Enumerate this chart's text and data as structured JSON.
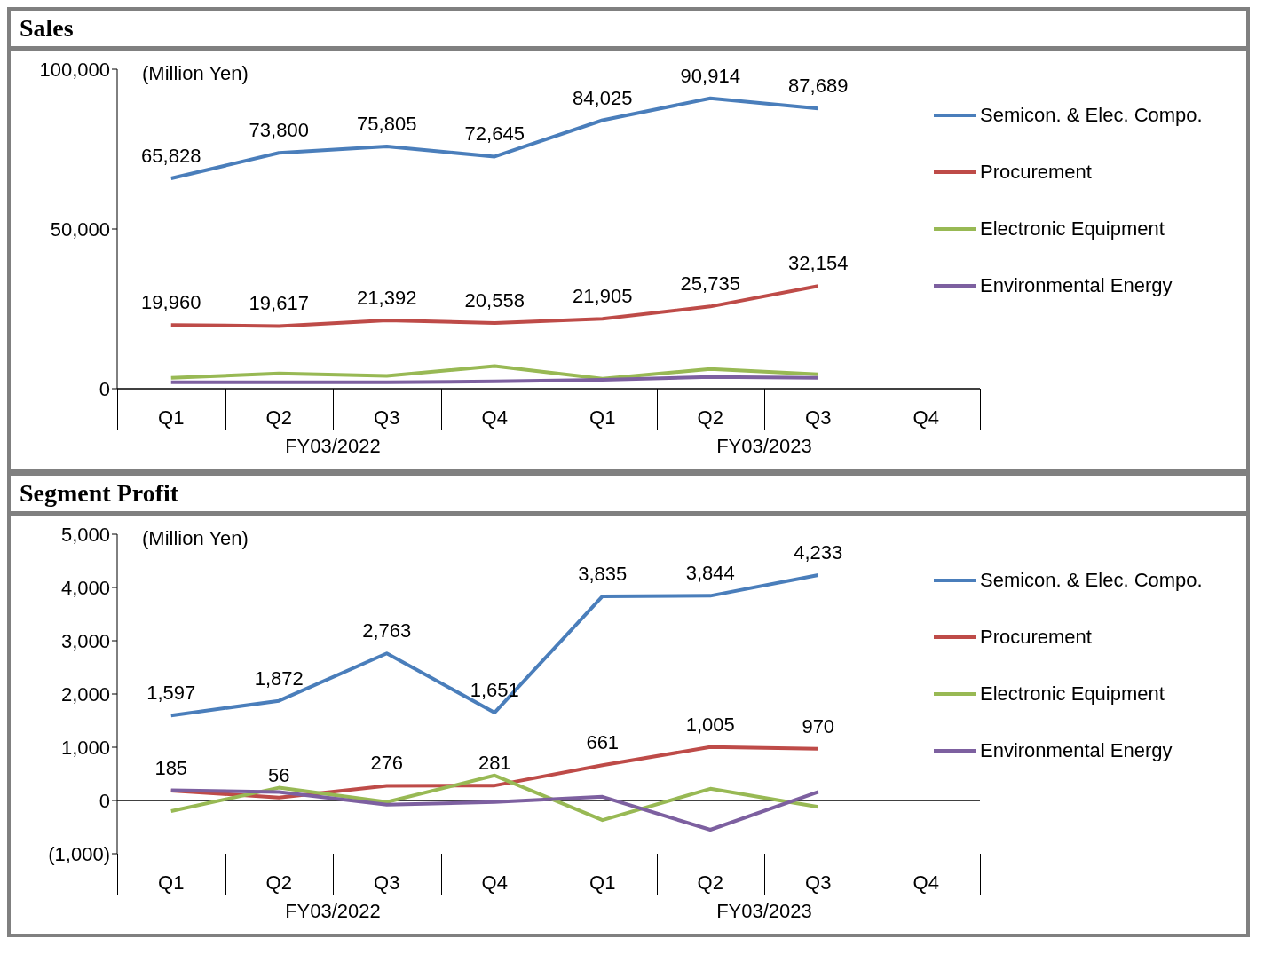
{
  "chart_data": [
    {
      "type": "line",
      "title": "Sales",
      "categories": [
        "Q1",
        "Q2",
        "Q3",
        "Q4",
        "Q1",
        "Q2",
        "Q3",
        "Q4"
      ],
      "ylim": [
        0,
        100000
      ],
      "yticks": [
        {
          "value": 0,
          "label": "0"
        },
        {
          "value": 50000,
          "label": "50,000"
        },
        {
          "value": 100000,
          "label": "100,000"
        }
      ],
      "legend": "right",
      "annotations": [
        "(Million Yen)",
        "FY03/2022",
        "FY03/2023"
      ],
      "series": [
        {
          "name": "Semicon. & Elec. Compo.",
          "color": "#4a7ebb",
          "values": [
            65828,
            73800,
            75805,
            72645,
            84025,
            90914,
            87689,
            null
          ],
          "value_labels": [
            "65,828",
            "73,800",
            "75,805",
            "72,645",
            "84,025",
            "90,914",
            "87,689",
            null
          ]
        },
        {
          "name": "Procurement",
          "color": "#be4b48",
          "values": [
            19960,
            19617,
            21392,
            20558,
            21905,
            25735,
            32154,
            null
          ],
          "value_labels": [
            "19,960",
            "19,617",
            "21,392",
            "20,558",
            "21,905",
            "25,735",
            "32,154",
            null
          ]
        },
        {
          "name": "Electronic Equipment",
          "color": "#98b954",
          "values": [
            3400,
            4800,
            4000,
            7100,
            3100,
            6200,
            4500,
            null
          ]
        },
        {
          "name": "Environmental Energy",
          "color": "#7d60a0",
          "values": [
            2000,
            2000,
            2000,
            2300,
            2800,
            3700,
            3400,
            null
          ]
        }
      ]
    },
    {
      "type": "line",
      "title": "Segment Profit",
      "categories": [
        "Q1",
        "Q2",
        "Q3",
        "Q4",
        "Q1",
        "Q2",
        "Q3",
        "Q4"
      ],
      "ylim": [
        -1000,
        5000
      ],
      "yticks": [
        {
          "value": -1000,
          "label": "(1,000)"
        },
        {
          "value": 0,
          "label": "0"
        },
        {
          "value": 1000,
          "label": "1,000"
        },
        {
          "value": 2000,
          "label": "2,000"
        },
        {
          "value": 3000,
          "label": "3,000"
        },
        {
          "value": 4000,
          "label": "4,000"
        },
        {
          "value": 5000,
          "label": "5,000"
        }
      ],
      "legend": "right",
      "annotations": [
        "(Million Yen)",
        "FY03/2022",
        "FY03/2023"
      ],
      "series": [
        {
          "name": "Semicon. & Elec. Compo.",
          "color": "#4a7ebb",
          "values": [
            1597,
            1872,
            2763,
            1651,
            3835,
            3844,
            4233,
            null
          ],
          "value_labels": [
            "1,597",
            "1,872",
            "2,763",
            "1,651",
            "3,835",
            "3,844",
            "4,233",
            null
          ]
        },
        {
          "name": "Procurement",
          "color": "#be4b48",
          "values": [
            185,
            56,
            276,
            281,
            661,
            1005,
            970,
            null
          ],
          "value_labels": [
            "185",
            "56",
            "276",
            "281",
            "661",
            "1,005",
            "970",
            null
          ]
        },
        {
          "name": "Electronic Equipment",
          "color": "#98b954",
          "values": [
            -200,
            240,
            -30,
            470,
            -370,
            220,
            -120,
            null
          ]
        },
        {
          "name": "Environmental Energy",
          "color": "#7d60a0",
          "values": [
            190,
            160,
            -80,
            -30,
            70,
            -550,
            160,
            null
          ]
        }
      ]
    }
  ]
}
